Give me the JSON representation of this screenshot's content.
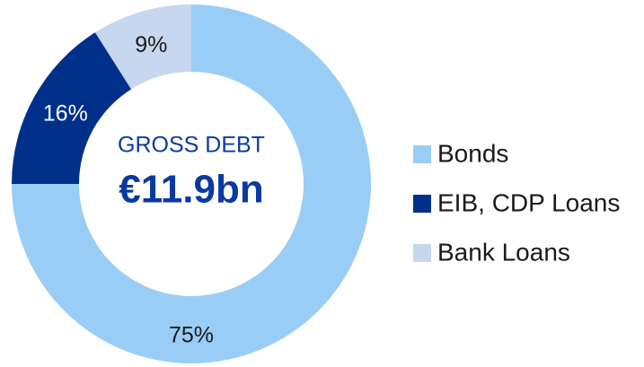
{
  "chart_data": {
    "type": "donut",
    "categories": [
      "Bonds",
      "EIB, CDP Loans",
      "Bank Loans"
    ],
    "values": [
      75,
      16,
      9
    ],
    "value_labels": [
      "75%",
      "16%",
      "9%"
    ],
    "colors": [
      "#99cdf6",
      "#00308a",
      "#c6d7ef"
    ],
    "center_label": "GROSS DEBT",
    "center_value": "€11.9bn",
    "legend": "right"
  }
}
